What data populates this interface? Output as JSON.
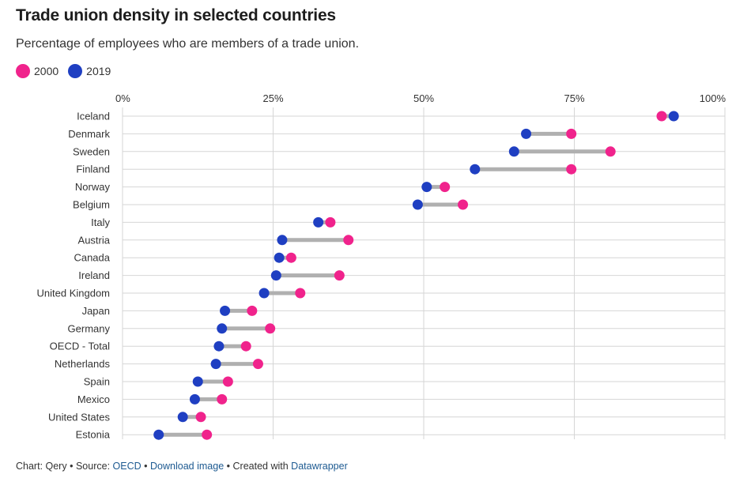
{
  "title": "Trade union density in selected countries",
  "subtitle": "Percentage of employees who are members of a trade union.",
  "colors": {
    "series_2000": "#f0238c",
    "series_2019": "#1f3fc2",
    "connector": "#b0b0b0",
    "grid": "#d6d6d6"
  },
  "footer": {
    "prefix": "Chart: Qery",
    "source_label": "Source:",
    "source_link": "OECD",
    "download_link": "Download image",
    "created_label": "Created with",
    "tool_link": "Datawrapper",
    "bullet": "•"
  },
  "chart_data": {
    "type": "dot-range",
    "x_unit": "percent",
    "xlim": [
      0,
      100
    ],
    "x_ticks": [
      0,
      25,
      50,
      75,
      100
    ],
    "x_tick_labels": [
      "0%",
      "25%",
      "50%",
      "75%",
      "100%"
    ],
    "grid": true,
    "legend_position": "top-left",
    "series": [
      {
        "name": "2000",
        "color_key": "series_2000"
      },
      {
        "name": "2019",
        "color_key": "series_2019"
      }
    ],
    "categories": [
      "Iceland",
      "Denmark",
      "Sweden",
      "Finland",
      "Norway",
      "Belgium",
      "Italy",
      "Austria",
      "Canada",
      "Ireland",
      "United Kingdom",
      "Japan",
      "Germany",
      "OECD - Total",
      "Netherlands",
      "Spain",
      "Mexico",
      "United States",
      "Estonia"
    ],
    "values_2000": [
      89.5,
      74.5,
      81.0,
      74.5,
      53.5,
      56.5,
      34.5,
      37.5,
      28.0,
      36.0,
      29.5,
      21.5,
      24.5,
      20.5,
      22.5,
      17.5,
      16.5,
      13.0,
      14.0
    ],
    "values_2019": [
      91.5,
      67.0,
      65.0,
      58.5,
      50.5,
      49.0,
      32.5,
      26.5,
      26.0,
      25.5,
      23.5,
      17.0,
      16.5,
      16.0,
      15.5,
      12.5,
      12.0,
      10.0,
      6.0
    ]
  }
}
